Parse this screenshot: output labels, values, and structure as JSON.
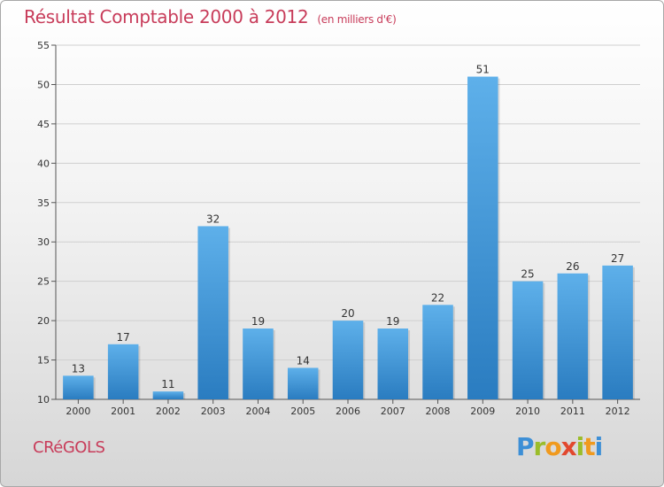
{
  "header": {
    "title": "Résultat Comptable 2000 à 2012",
    "subtitle": "(en milliers d'€)"
  },
  "commune": "CRéGOLS",
  "logo": {
    "text": "Proxiti",
    "letters": [
      "P",
      "r",
      "o",
      "x",
      "i",
      "t",
      "i"
    ]
  },
  "colors": {
    "bar_light": "#5eb0ea",
    "bar_dark": "#2a7cc0",
    "title": "#c83c5a"
  },
  "chart_data": {
    "type": "bar",
    "title": "Résultat Comptable 2000 à 2012",
    "subtitle": "(en milliers d'€)",
    "xlabel": "",
    "ylabel": "",
    "categories": [
      "2000",
      "2001",
      "2002",
      "2003",
      "2004",
      "2005",
      "2006",
      "2007",
      "2008",
      "2009",
      "2010",
      "2011",
      "2012"
    ],
    "values": [
      13,
      17,
      11,
      32,
      19,
      14,
      20,
      19,
      22,
      51,
      25,
      26,
      27
    ],
    "ylim": [
      10,
      55
    ],
    "yticks": [
      10,
      15,
      20,
      25,
      30,
      35,
      40,
      45,
      50,
      55
    ],
    "grid": true,
    "legend": "none"
  }
}
